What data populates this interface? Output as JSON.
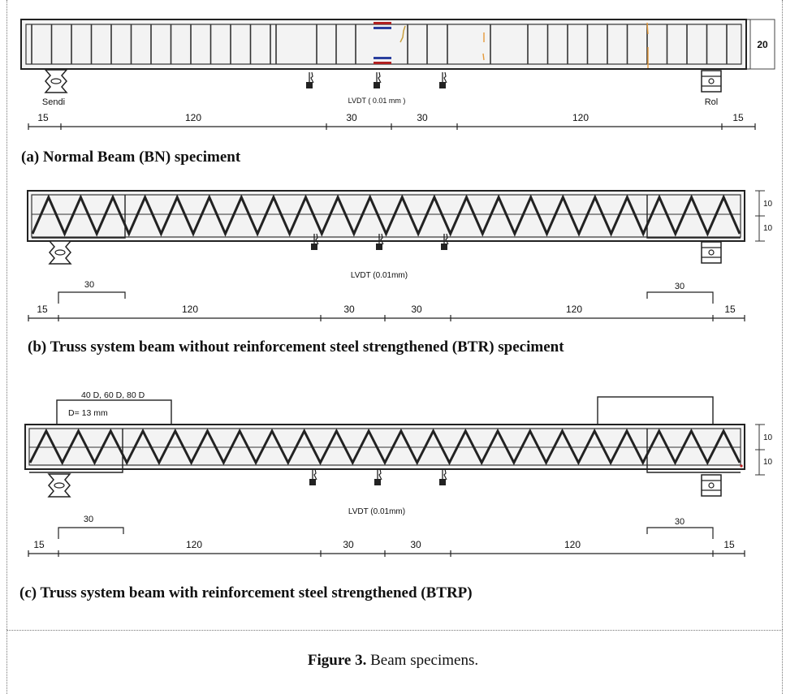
{
  "panel_a": {
    "caption": "(a)  Normal Beam (BN) speciment",
    "height_label": "20",
    "left_support": "Sendi",
    "right_support": "Rol",
    "lvdt": "LVDT ( 0.01 mm )",
    "dims": [
      "15",
      "120",
      "30",
      "30",
      "120",
      "15"
    ]
  },
  "panel_b": {
    "caption": "(b)  Truss system beam without reinforcement steel strengthened (BTR) speciment",
    "height_top": "10",
    "height_bottom": "10",
    "lvdt": "LVDT (0.01mm)",
    "end_left": "30",
    "end_right": "30",
    "dims": [
      "15",
      "120",
      "30",
      "30",
      "120",
      "15"
    ]
  },
  "panel_c": {
    "caption": "(c)   Truss system beam with reinforcement steel strengthened (BTRP)",
    "plate_label": "40 D, 60 D, 80 D",
    "diameter_label": "D= 13 mm",
    "height_top": "10",
    "height_bottom": "10",
    "lvdt": "LVDT (0.01mm)",
    "end_left": "30",
    "end_right": "30",
    "dims": [
      "15",
      "120",
      "30",
      "30",
      "120",
      "15"
    ]
  },
  "figure_caption": {
    "label": "Figure 3.",
    "text": " Beam specimens."
  },
  "colors": {
    "line": "#222222",
    "beam_fill": "#f3f3f3",
    "plate_blue": "#2a3f9e",
    "plate_red": "#b02020",
    "crack_orange": "#e59a3a"
  }
}
